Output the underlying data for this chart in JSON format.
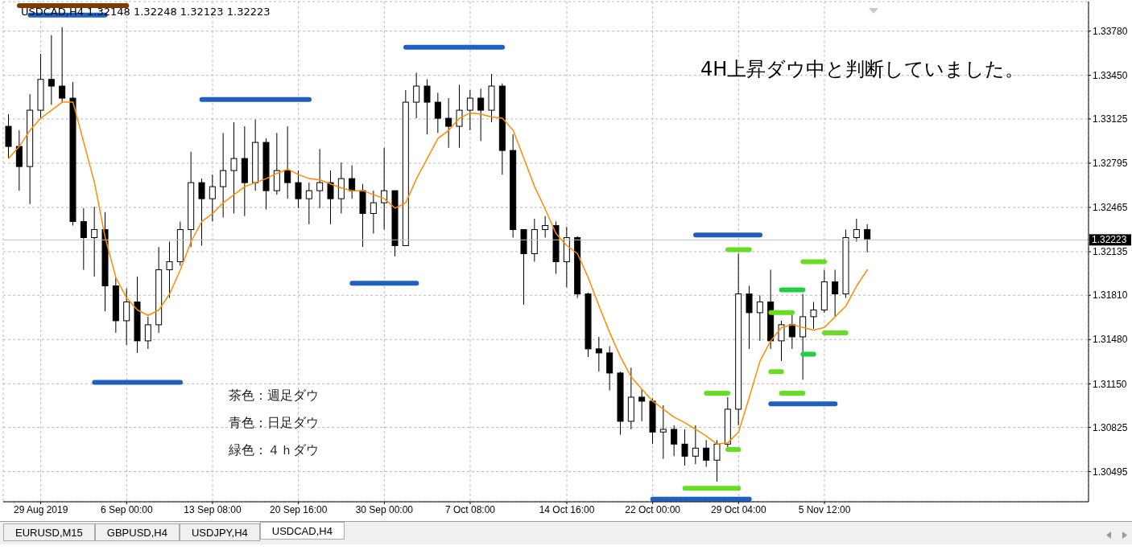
{
  "chart_data": {
    "type": "candlestick",
    "categories": [
      null,
      null,
      null,
      "29 Aug 2019",
      null,
      null,
      null,
      null,
      null,
      null,
      null,
      "6 Sep 00:00",
      null,
      null,
      null,
      null,
      null,
      null,
      null,
      "13 Sep 08:00",
      null,
      null,
      null,
      null,
      null,
      null,
      null,
      "20 Sep 16:00",
      null,
      null,
      null,
      null,
      null,
      null,
      null,
      "30 Sep 00:00",
      null,
      null,
      null,
      null,
      null,
      null,
      null,
      "7 Oct 08:00",
      null,
      null,
      null,
      null,
      null,
      null,
      null,
      null,
      "14 Oct 16:00",
      null,
      null,
      null,
      null,
      null,
      null,
      null,
      "22 Oct 00:00",
      null,
      null,
      null,
      null,
      null,
      null,
      null,
      "29 Oct 04:00",
      null,
      null,
      null,
      null,
      null,
      null,
      null,
      "5 Nov 12:00",
      null,
      null,
      null,
      null
    ],
    "ohlc": [
      [
        1.3307,
        1.3316,
        1.3283,
        1.3292
      ],
      [
        1.3292,
        1.3304,
        1.3259,
        1.3277
      ],
      [
        1.3277,
        1.3331,
        1.3249,
        1.3319
      ],
      [
        1.3319,
        1.3361,
        1.3313,
        1.3342
      ],
      [
        1.3342,
        1.3375,
        1.3323,
        1.3337
      ],
      [
        1.3337,
        1.3381,
        1.3325,
        1.3328
      ],
      [
        1.3328,
        1.334,
        1.3233,
        1.3236
      ],
      [
        1.3236,
        1.3246,
        1.32,
        1.3224
      ],
      [
        1.3224,
        1.3247,
        1.3195,
        1.323
      ],
      [
        1.323,
        1.3243,
        1.3169,
        1.3188
      ],
      [
        1.3188,
        1.3194,
        1.3153,
        1.3162
      ],
      [
        1.3162,
        1.3186,
        1.3144,
        1.3176
      ],
      [
        1.3176,
        1.3195,
        1.3138,
        1.3147
      ],
      [
        1.3147,
        1.3165,
        1.3141,
        1.3159
      ],
      [
        1.3159,
        1.3217,
        1.3153,
        1.32
      ],
      [
        1.32,
        1.3221,
        1.3179,
        1.3206
      ],
      [
        1.3206,
        1.3236,
        1.3203,
        1.323
      ],
      [
        1.323,
        1.3288,
        1.3217,
        1.3265
      ],
      [
        1.3265,
        1.3268,
        1.3218,
        1.3253
      ],
      [
        1.3253,
        1.3271,
        1.3236,
        1.3262
      ],
      [
        1.3262,
        1.3302,
        1.3239,
        1.3274
      ],
      [
        1.3274,
        1.331,
        1.3242,
        1.3283
      ],
      [
        1.3283,
        1.3307,
        1.324,
        1.3265
      ],
      [
        1.3265,
        1.3312,
        1.3259,
        1.3295
      ],
      [
        1.3295,
        1.3298,
        1.3245,
        1.3259
      ],
      [
        1.3259,
        1.3302,
        1.3256,
        1.3274
      ],
      [
        1.3274,
        1.3307,
        1.3253,
        1.3265
      ],
      [
        1.3265,
        1.3274,
        1.3246,
        1.3253
      ],
      [
        1.3253,
        1.3265,
        1.3234,
        1.3259
      ],
      [
        1.3259,
        1.329,
        1.3246,
        1.3265
      ],
      [
        1.3265,
        1.3274,
        1.3234,
        1.3253
      ],
      [
        1.3253,
        1.328,
        1.3242,
        1.3268
      ],
      [
        1.3268,
        1.3278,
        1.3253,
        1.3259
      ],
      [
        1.3259,
        1.3264,
        1.3217,
        1.3242
      ],
      [
        1.3242,
        1.3259,
        1.3227,
        1.325
      ],
      [
        1.325,
        1.3291,
        1.323,
        1.3259
      ],
      [
        1.3259,
        1.3259,
        1.321,
        1.3218
      ],
      [
        1.3218,
        1.3334,
        1.3218,
        1.3325
      ],
      [
        1.3325,
        1.3347,
        1.3313,
        1.3337
      ],
      [
        1.3337,
        1.3342,
        1.3301,
        1.3325
      ],
      [
        1.3325,
        1.3332,
        1.3302,
        1.3313
      ],
      [
        1.3313,
        1.3328,
        1.3291,
        1.3307
      ],
      [
        1.3307,
        1.3338,
        1.3291,
        1.3319
      ],
      [
        1.3319,
        1.3334,
        1.3304,
        1.3328
      ],
      [
        1.3328,
        1.3335,
        1.3296,
        1.3319
      ],
      [
        1.3319,
        1.3346,
        1.331,
        1.3337
      ],
      [
        1.3337,
        1.3339,
        1.3271,
        1.3289
      ],
      [
        1.3289,
        1.3301,
        1.3224,
        1.323
      ],
      [
        1.323,
        1.323,
        1.3174,
        1.3212
      ],
      [
        1.3212,
        1.3238,
        1.3206,
        1.323
      ],
      [
        1.323,
        1.324,
        1.3224,
        1.3233
      ],
      [
        1.3233,
        1.3236,
        1.3197,
        1.3206
      ],
      [
        1.3206,
        1.3232,
        1.3187,
        1.3224
      ],
      [
        1.3224,
        1.3225,
        1.3179,
        1.3182
      ],
      [
        1.3182,
        1.3183,
        1.3135,
        1.3141
      ],
      [
        1.3141,
        1.315,
        1.3124,
        1.3138
      ],
      [
        1.3138,
        1.3143,
        1.311,
        1.3123
      ],
      [
        1.3123,
        1.3124,
        1.3077,
        1.3087
      ],
      [
        1.3087,
        1.3127,
        1.3081,
        1.3105
      ],
      [
        1.3105,
        1.3111,
        1.3087,
        1.3102
      ],
      [
        1.3102,
        1.3104,
        1.307,
        1.3079
      ],
      [
        1.3079,
        1.3099,
        1.3059,
        1.3081
      ],
      [
        1.3081,
        1.3084,
        1.3061,
        1.307
      ],
      [
        1.307,
        1.3081,
        1.3054,
        1.3061
      ],
      [
        1.3061,
        1.3084,
        1.3055,
        1.3067
      ],
      [
        1.3067,
        1.3073,
        1.3053,
        1.3058
      ],
      [
        1.3058,
        1.3073,
        1.3042,
        1.307
      ],
      [
        1.307,
        1.3105,
        1.3067,
        1.3096
      ],
      [
        1.3096,
        1.3212,
        1.3084,
        1.3182
      ],
      [
        1.3182,
        1.3188,
        1.3141,
        1.3168
      ],
      [
        1.3168,
        1.3181,
        1.3147,
        1.3176
      ],
      [
        1.3176,
        1.32,
        1.3141,
        1.3147
      ],
      [
        1.3147,
        1.3162,
        1.3132,
        1.3159
      ],
      [
        1.3159,
        1.3167,
        1.3141,
        1.315
      ],
      [
        1.315,
        1.3182,
        1.3118,
        1.3165
      ],
      [
        1.3165,
        1.3176,
        1.3156,
        1.317
      ],
      [
        1.317,
        1.32,
        1.3168,
        1.3191
      ],
      [
        1.3191,
        1.32,
        1.3165,
        1.3182
      ],
      [
        1.3182,
        1.323,
        1.3179,
        1.3224
      ],
      [
        1.3224,
        1.3238,
        1.3221,
        1.323
      ],
      [
        1.323,
        1.3234,
        1.3213,
        1.3223
      ]
    ],
    "series": [
      {
        "type": "line",
        "color": "#ff8c00",
        "values": [
          1.3283,
          1.3292,
          1.3304,
          1.3313,
          1.3319,
          1.3325,
          1.3325,
          1.3295,
          1.3265,
          1.3224,
          1.3194,
          1.3179,
          1.317,
          1.3166,
          1.317,
          1.3182,
          1.32,
          1.3221,
          1.3236,
          1.3242,
          1.325,
          1.3256,
          1.3262,
          1.3265,
          1.3268,
          1.3272,
          1.3275,
          1.3271,
          1.3268,
          1.3267,
          1.3264,
          1.3261,
          1.3259,
          1.3259,
          1.3256,
          1.3253,
          1.3246,
          1.325,
          1.3268,
          1.3283,
          1.3298,
          1.3304,
          1.3313,
          1.3317,
          1.3316,
          1.3314,
          1.3313,
          1.3304,
          1.3283,
          1.3262,
          1.3245,
          1.3227,
          1.3218,
          1.3212,
          1.3194,
          1.3173,
          1.3153,
          1.3135,
          1.312,
          1.3111,
          1.3102,
          1.3096,
          1.309,
          1.3086,
          1.3081,
          1.3076,
          1.307,
          1.3071,
          1.3079,
          1.3105,
          1.3132,
          1.3147,
          1.3157,
          1.3159,
          1.3157,
          1.3155,
          1.3157,
          1.3165,
          1.3173,
          1.3188,
          1.32
        ]
      },
      {
        "type": "line",
        "color": "#7a3d00",
        "values": [
          null,
          1.3397,
          1.3397,
          1.3397,
          1.3397,
          1.3397,
          1.3397,
          1.3397,
          1.3397,
          1.3397,
          1.3397,
          1.3397,
          null,
          null,
          null,
          null,
          null,
          null,
          null,
          null,
          null,
          null,
          null,
          null,
          null,
          null,
          null,
          null,
          null,
          null,
          null,
          null,
          null,
          null,
          null,
          null,
          null,
          null,
          null,
          null,
          null,
          null,
          null,
          null,
          null,
          null,
          null,
          null,
          null,
          null,
          null,
          null,
          null,
          null,
          null,
          null,
          null,
          null,
          null,
          null,
          null,
          null,
          null,
          null,
          null,
          null,
          null,
          null,
          null,
          null,
          null,
          null,
          null,
          null,
          null,
          null,
          null,
          null,
          null,
          null,
          null
        ]
      },
      {
        "type": "line",
        "color": "#2060c0",
        "values": [
          null,
          null,
          1.339,
          1.339,
          1.339,
          1.339,
          1.339,
          1.339,
          1.339,
          1.339,
          null,
          null,
          null,
          null,
          null,
          null,
          null,
          null,
          null,
          null,
          null,
          null,
          null,
          null,
          null,
          null,
          null,
          null,
          null,
          null,
          null,
          null,
          null,
          null,
          null,
          null,
          null,
          null,
          null,
          null,
          null,
          null,
          null,
          null,
          null,
          null,
          null,
          null,
          null,
          null,
          null,
          null,
          null,
          null,
          null,
          null,
          null,
          null,
          null,
          null,
          null,
          null,
          null,
          null,
          null,
          null,
          null,
          null,
          null,
          null,
          null,
          null,
          null,
          null,
          null,
          null,
          null,
          null,
          null,
          null,
          null
        ]
      },
      {
        "type": "line",
        "color": "#2060c0",
        "values": [
          null,
          null,
          null,
          null,
          null,
          null,
          null,
          null,
          1.3116,
          1.3116,
          1.3116,
          1.3116,
          1.3116,
          1.3116,
          1.3116,
          1.3116,
          1.3116,
          null,
          null,
          null,
          null,
          null,
          null,
          null,
          null,
          null,
          null,
          null,
          null,
          null,
          null,
          null,
          null,
          null,
          null,
          null,
          null,
          null,
          null,
          null,
          null,
          null,
          null,
          null,
          null,
          null,
          null,
          null,
          null,
          null,
          null,
          null,
          null,
          null,
          null,
          null,
          null,
          null,
          null,
          null,
          null,
          null,
          null,
          null,
          null,
          null,
          null,
          null,
          null,
          null,
          null,
          null,
          null,
          null,
          null,
          null,
          null,
          null,
          null,
          null,
          null
        ]
      },
      {
        "type": "line",
        "color": "#2060c0",
        "values": [
          null,
          null,
          null,
          null,
          null,
          null,
          null,
          null,
          null,
          null,
          null,
          null,
          null,
          null,
          null,
          null,
          null,
          null,
          1.3327,
          1.3327,
          1.3327,
          1.3327,
          1.3327,
          1.3327,
          1.3327,
          1.3327,
          1.3327,
          1.3327,
          1.3327,
          null,
          null,
          null,
          null,
          null,
          null,
          null,
          null,
          null,
          null,
          null,
          null,
          null,
          null,
          null,
          null,
          null,
          null,
          null,
          null,
          null,
          null,
          null,
          null,
          null,
          null,
          null,
          null,
          null,
          null,
          null,
          null,
          null,
          null,
          null,
          null,
          null,
          null,
          null,
          null,
          null,
          null,
          null,
          null,
          null,
          null,
          null,
          null,
          null,
          null,
          null,
          null
        ]
      },
      {
        "type": "line",
        "color": "#2060c0",
        "values": [
          null,
          null,
          null,
          null,
          null,
          null,
          null,
          null,
          null,
          null,
          null,
          null,
          null,
          null,
          null,
          null,
          null,
          null,
          null,
          null,
          null,
          null,
          null,
          null,
          null,
          null,
          null,
          null,
          null,
          null,
          null,
          null,
          1.319,
          1.319,
          1.319,
          1.319,
          1.319,
          1.319,
          1.319,
          null,
          null,
          null,
          null,
          null,
          null,
          null,
          null,
          null,
          null,
          null,
          null,
          null,
          null,
          null,
          null,
          null,
          null,
          null,
          null,
          null,
          null,
          null,
          null,
          null,
          null,
          null,
          null,
          null,
          null,
          null,
          null,
          null,
          null,
          null,
          null,
          null,
          null,
          null,
          null,
          null,
          null
        ]
      },
      {
        "type": "line",
        "color": "#2060c0",
        "values": [
          null,
          null,
          null,
          null,
          null,
          null,
          null,
          null,
          null,
          null,
          null,
          null,
          null,
          null,
          null,
          null,
          null,
          null,
          null,
          null,
          null,
          null,
          null,
          null,
          null,
          null,
          null,
          null,
          null,
          null,
          null,
          null,
          null,
          null,
          null,
          null,
          null,
          1.3366,
          1.3366,
          1.3366,
          1.3366,
          1.3366,
          1.3366,
          1.3366,
          1.3366,
          1.3366,
          1.3366,
          null,
          null,
          null,
          null,
          null,
          null,
          null,
          null,
          null,
          null,
          null,
          null,
          null,
          null,
          null,
          null,
          null,
          null,
          null,
          null,
          null,
          null,
          null,
          null,
          null,
          null,
          null,
          null,
          null,
          null,
          null,
          null,
          null,
          null
        ]
      },
      {
        "type": "line",
        "color": "#2060c0",
        "values": [
          null,
          null,
          null,
          null,
          null,
          null,
          null,
          null,
          null,
          null,
          null,
          null,
          null,
          null,
          null,
          null,
          null,
          null,
          null,
          null,
          null,
          null,
          null,
          null,
          null,
          null,
          null,
          null,
          null,
          null,
          null,
          null,
          null,
          null,
          null,
          null,
          null,
          null,
          null,
          null,
          null,
          null,
          null,
          null,
          null,
          null,
          null,
          null,
          null,
          null,
          null,
          null,
          null,
          null,
          null,
          null,
          null,
          null,
          null,
          null,
          1.3029,
          1.3029,
          1.3029,
          1.3029,
          1.3029,
          1.3029,
          1.3029,
          1.3029,
          1.3029,
          1.3029,
          null,
          null,
          null,
          null,
          null,
          null,
          null,
          null,
          null,
          null,
          null
        ]
      },
      {
        "type": "line",
        "color": "#2060c0",
        "values": [
          null,
          null,
          null,
          null,
          null,
          null,
          null,
          null,
          null,
          null,
          null,
          null,
          null,
          null,
          null,
          null,
          null,
          null,
          null,
          null,
          null,
          null,
          null,
          null,
          null,
          null,
          null,
          null,
          null,
          null,
          null,
          null,
          null,
          null,
          null,
          null,
          null,
          null,
          null,
          null,
          null,
          null,
          null,
          null,
          null,
          null,
          null,
          null,
          null,
          null,
          null,
          null,
          null,
          null,
          null,
          null,
          null,
          null,
          null,
          null,
          null,
          null,
          null,
          null,
          1.3226,
          1.3226,
          1.3226,
          1.3226,
          1.3226,
          1.3226,
          1.3226,
          null,
          null,
          null,
          null,
          null,
          null,
          null,
          null,
          null,
          null
        ]
      },
      {
        "type": "line",
        "color": "#2060c0",
        "values": [
          null,
          null,
          null,
          null,
          null,
          null,
          null,
          null,
          null,
          null,
          null,
          null,
          null,
          null,
          null,
          null,
          null,
          null,
          null,
          null,
          null,
          null,
          null,
          null,
          null,
          null,
          null,
          null,
          null,
          null,
          null,
          null,
          null,
          null,
          null,
          null,
          null,
          null,
          null,
          null,
          null,
          null,
          null,
          null,
          null,
          null,
          null,
          null,
          null,
          null,
          null,
          null,
          null,
          null,
          null,
          null,
          null,
          null,
          null,
          null,
          null,
          null,
          null,
          null,
          null,
          null,
          null,
          null,
          null,
          null,
          null,
          1.31,
          1.31,
          1.31,
          1.31,
          1.31,
          1.31,
          1.31,
          null,
          null,
          null
        ]
      },
      {
        "type": "line",
        "color": "#66dd22",
        "values": [
          null,
          null,
          null,
          null,
          null,
          null,
          null,
          null,
          null,
          null,
          null,
          null,
          null,
          null,
          null,
          null,
          null,
          null,
          null,
          null,
          null,
          null,
          null,
          null,
          null,
          null,
          null,
          null,
          null,
          null,
          null,
          null,
          null,
          null,
          null,
          null,
          null,
          null,
          null,
          null,
          null,
          null,
          null,
          null,
          null,
          null,
          null,
          null,
          null,
          null,
          null,
          null,
          null,
          null,
          null,
          null,
          null,
          null,
          null,
          null,
          null,
          null,
          null,
          null,
          null,
          1.3108,
          1.3108,
          1.3108,
          null,
          null,
          null,
          null,
          null,
          null,
          null,
          null,
          null,
          null,
          null,
          null,
          null
        ]
      },
      {
        "type": "line",
        "color": "#66dd22",
        "values": [
          null,
          null,
          null,
          null,
          null,
          null,
          null,
          null,
          null,
          null,
          null,
          null,
          null,
          null,
          null,
          null,
          null,
          null,
          null,
          null,
          null,
          null,
          null,
          null,
          null,
          null,
          null,
          null,
          null,
          null,
          null,
          null,
          null,
          null,
          null,
          null,
          null,
          null,
          null,
          null,
          null,
          null,
          null,
          null,
          null,
          null,
          null,
          null,
          null,
          null,
          null,
          null,
          null,
          null,
          null,
          null,
          null,
          null,
          null,
          null,
          null,
          null,
          null,
          1.3037,
          1.3037,
          1.3037,
          1.3037,
          1.3037,
          1.3037,
          null,
          null,
          null,
          null,
          null,
          null,
          null,
          null,
          null,
          null,
          null,
          null
        ]
      },
      {
        "type": "line",
        "color": "#66dd22",
        "values": [
          null,
          null,
          null,
          null,
          null,
          null,
          null,
          null,
          null,
          null,
          null,
          null,
          null,
          null,
          null,
          null,
          null,
          null,
          null,
          null,
          null,
          null,
          null,
          null,
          null,
          null,
          null,
          null,
          null,
          null,
          null,
          null,
          null,
          null,
          null,
          null,
          null,
          null,
          null,
          null,
          null,
          null,
          null,
          null,
          null,
          null,
          null,
          null,
          null,
          null,
          null,
          null,
          null,
          null,
          null,
          null,
          null,
          null,
          null,
          null,
          null,
          null,
          null,
          null,
          null,
          null,
          null,
          1.3215,
          1.3215,
          1.3215,
          null,
          null,
          null,
          null,
          null,
          null,
          null,
          null,
          null,
          null,
          null
        ]
      },
      {
        "type": "line",
        "color": "#66dd22",
        "values": [
          null,
          null,
          null,
          null,
          null,
          null,
          null,
          null,
          null,
          null,
          null,
          null,
          null,
          null,
          null,
          null,
          null,
          null,
          null,
          null,
          null,
          null,
          null,
          null,
          null,
          null,
          null,
          null,
          null,
          null,
          null,
          null,
          null,
          null,
          null,
          null,
          null,
          null,
          null,
          null,
          null,
          null,
          null,
          null,
          null,
          null,
          null,
          null,
          null,
          null,
          null,
          null,
          null,
          null,
          null,
          null,
          null,
          null,
          null,
          null,
          null,
          null,
          null,
          null,
          null,
          null,
          null,
          1.3066,
          1.3066,
          null,
          null,
          null,
          null,
          null,
          null,
          null,
          null,
          null,
          null,
          null,
          null
        ]
      },
      {
        "type": "line",
        "color": "#66dd22",
        "values": [
          null,
          null,
          null,
          null,
          null,
          null,
          null,
          null,
          null,
          null,
          null,
          null,
          null,
          null,
          null,
          null,
          null,
          null,
          null,
          null,
          null,
          null,
          null,
          null,
          null,
          null,
          null,
          null,
          null,
          null,
          null,
          null,
          null,
          null,
          null,
          null,
          null,
          null,
          null,
          null,
          null,
          null,
          null,
          null,
          null,
          null,
          null,
          null,
          null,
          null,
          null,
          null,
          null,
          null,
          null,
          null,
          null,
          null,
          null,
          null,
          null,
          null,
          null,
          null,
          null,
          null,
          null,
          null,
          null,
          null,
          null,
          1.3124,
          1.3124,
          null,
          null,
          null,
          null,
          null,
          null,
          null,
          null
        ]
      },
      {
        "type": "line",
        "color": "#66dd22",
        "values": [
          null,
          null,
          null,
          null,
          null,
          null,
          null,
          null,
          null,
          null,
          null,
          null,
          null,
          null,
          null,
          null,
          null,
          null,
          null,
          null,
          null,
          null,
          null,
          null,
          null,
          null,
          null,
          null,
          null,
          null,
          null,
          null,
          null,
          null,
          null,
          null,
          null,
          null,
          null,
          null,
          null,
          null,
          null,
          null,
          null,
          null,
          null,
          null,
          null,
          null,
          null,
          null,
          null,
          null,
          null,
          null,
          null,
          null,
          null,
          null,
          null,
          null,
          null,
          null,
          null,
          null,
          null,
          null,
          null,
          null,
          null,
          1.3168,
          1.3168,
          1.3168,
          null,
          null,
          null,
          null,
          null,
          null,
          null
        ]
      },
      {
        "type": "line",
        "color": "#22cc44",
        "values": [
          null,
          null,
          null,
          null,
          null,
          null,
          null,
          null,
          null,
          null,
          null,
          null,
          null,
          null,
          null,
          null,
          null,
          null,
          null,
          null,
          null,
          null,
          null,
          null,
          null,
          null,
          null,
          null,
          null,
          null,
          null,
          null,
          null,
          null,
          null,
          null,
          null,
          null,
          null,
          null,
          null,
          null,
          null,
          null,
          null,
          null,
          null,
          null,
          null,
          null,
          null,
          null,
          null,
          null,
          null,
          null,
          null,
          null,
          null,
          null,
          null,
          null,
          null,
          null,
          null,
          null,
          null,
          null,
          null,
          null,
          null,
          null,
          1.3185,
          1.3185,
          1.3185,
          null,
          null,
          null,
          null,
          null,
          null
        ]
      },
      {
        "type": "line",
        "color": "#66dd22",
        "values": [
          null,
          null,
          null,
          null,
          null,
          null,
          null,
          null,
          null,
          null,
          null,
          null,
          null,
          null,
          null,
          null,
          null,
          null,
          null,
          null,
          null,
          null,
          null,
          null,
          null,
          null,
          null,
          null,
          null,
          null,
          null,
          null,
          null,
          null,
          null,
          null,
          null,
          null,
          null,
          null,
          null,
          null,
          null,
          null,
          null,
          null,
          null,
          null,
          null,
          null,
          null,
          null,
          null,
          null,
          null,
          null,
          null,
          null,
          null,
          null,
          null,
          null,
          null,
          null,
          null,
          null,
          null,
          null,
          null,
          null,
          null,
          null,
          null,
          null,
          1.3206,
          1.3206,
          1.3206,
          null,
          null,
          null,
          null
        ]
      },
      {
        "type": "line",
        "color": "#66dd22",
        "values": [
          null,
          null,
          null,
          null,
          null,
          null,
          null,
          null,
          null,
          null,
          null,
          null,
          null,
          null,
          null,
          null,
          null,
          null,
          null,
          null,
          null,
          null,
          null,
          null,
          null,
          null,
          null,
          null,
          null,
          null,
          null,
          null,
          null,
          null,
          null,
          null,
          null,
          null,
          null,
          null,
          null,
          null,
          null,
          null,
          null,
          null,
          null,
          null,
          null,
          null,
          null,
          null,
          null,
          null,
          null,
          null,
          null,
          null,
          null,
          null,
          null,
          null,
          null,
          null,
          null,
          null,
          null,
          null,
          null,
          null,
          null,
          null,
          1.3108,
          1.3108,
          1.3108,
          null,
          null,
          null,
          null,
          null,
          null
        ]
      },
      {
        "type": "line",
        "color": "#22cc44",
        "values": [
          null,
          null,
          null,
          null,
          null,
          null,
          null,
          null,
          null,
          null,
          null,
          null,
          null,
          null,
          null,
          null,
          null,
          null,
          null,
          null,
          null,
          null,
          null,
          null,
          null,
          null,
          null,
          null,
          null,
          null,
          null,
          null,
          null,
          null,
          null,
          null,
          null,
          null,
          null,
          null,
          null,
          null,
          null,
          null,
          null,
          null,
          null,
          null,
          null,
          null,
          null,
          null,
          null,
          null,
          null,
          null,
          null,
          null,
          null,
          null,
          null,
          null,
          null,
          null,
          null,
          null,
          null,
          null,
          null,
          null,
          null,
          null,
          null,
          null,
          1.3137,
          1.3137,
          null,
          null,
          null,
          null,
          null
        ]
      },
      {
        "type": "line",
        "color": "#66dd22",
        "values": [
          null,
          null,
          null,
          null,
          null,
          null,
          null,
          null,
          null,
          null,
          null,
          null,
          null,
          null,
          null,
          null,
          null,
          null,
          null,
          null,
          null,
          null,
          null,
          null,
          null,
          null,
          null,
          null,
          null,
          null,
          null,
          null,
          null,
          null,
          null,
          null,
          null,
          null,
          null,
          null,
          null,
          null,
          null,
          null,
          null,
          null,
          null,
          null,
          null,
          null,
          null,
          null,
          null,
          null,
          null,
          null,
          null,
          null,
          null,
          null,
          null,
          null,
          null,
          null,
          null,
          null,
          null,
          null,
          null,
          null,
          null,
          null,
          null,
          null,
          null,
          null,
          1.3153,
          1.3153,
          1.3153,
          null,
          null
        ]
      }
    ],
    "ylim": [
      1.3027,
      1.34
    ],
    "yticks": [
      {
        "value": 1.30495,
        "label": "1.30495"
      },
      {
        "value": 1.30825,
        "label": "1.30825"
      },
      {
        "value": 1.3115,
        "label": "1.31150"
      },
      {
        "value": 1.3148,
        "label": "1.31480"
      },
      {
        "value": 1.3181,
        "label": "1.31810"
      },
      {
        "value": 1.32135,
        "label": "1.32135"
      },
      {
        "value": 1.32465,
        "label": "1.32465"
      },
      {
        "value": 1.32795,
        "label": "1.32795"
      },
      {
        "value": 1.33125,
        "label": "1.33125"
      },
      {
        "value": 1.3345,
        "label": "1.33450"
      },
      {
        "value": 1.3378,
        "label": "1.33780"
      }
    ],
    "grid": true,
    "marker": "none",
    "ref_lines": [
      {
        "axis": "y",
        "value": 1.32223,
        "label": "1.32223",
        "color": "#c0c0c0"
      }
    ],
    "annotations": [
      "USDCAD,H4 1.32148 1.32248 1.32123 1.32223",
      "4H上昇ダウ中と判断していました。",
      "茶色：週足ダウ",
      "青色：日足ダウ",
      "緑色：４ｈダウ",
      "EURUSD,M15",
      "GBPUSD,H4",
      "USDJPY,H4",
      "USDCAD,H4"
    ]
  }
}
